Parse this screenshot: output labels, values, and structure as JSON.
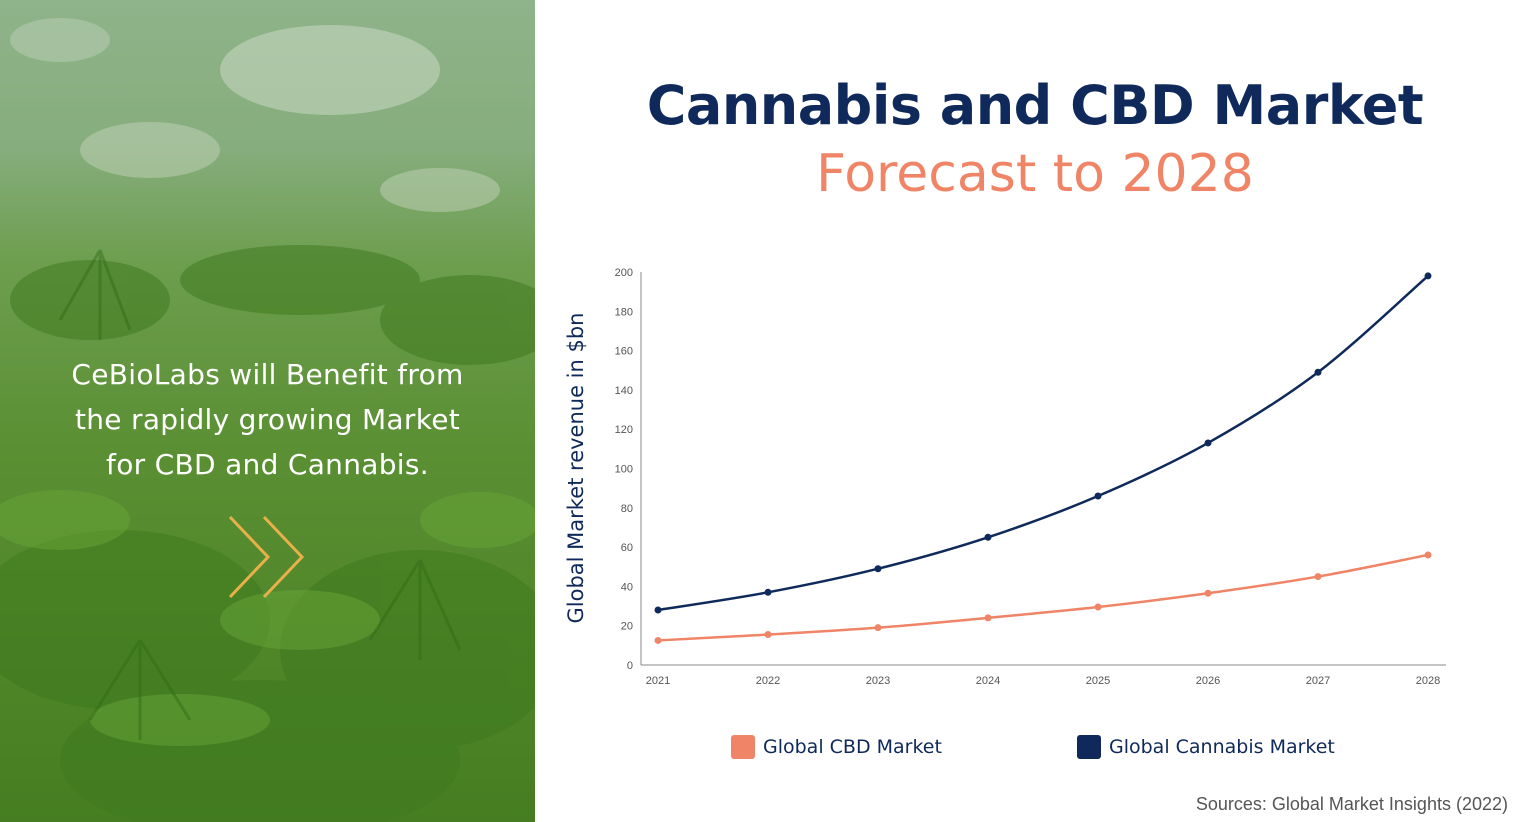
{
  "left_panel": {
    "tagline_line1": "CeBioLabs will Benefit from",
    "tagline_line2": "the rapidly growing Market",
    "tagline_line3": "for CBD and Cannabis.",
    "chevron_icon": "double-chevron-right-icon",
    "chevron_color": "#e8b04a"
  },
  "chart_data": {
    "type": "line",
    "title": "Cannabis and CBD Market",
    "subtitle": "Forecast to 2028",
    "xlabel": "",
    "ylabel": "Global Market revenue in $bn",
    "x": [
      "2021",
      "2022",
      "2023",
      "2024",
      "2025",
      "2026",
      "2027",
      "2028"
    ],
    "ylim": [
      0,
      200
    ],
    "yticks": [
      "0",
      "20",
      "40",
      "60",
      "80",
      "100",
      "120",
      "140",
      "160",
      "180",
      "200"
    ],
    "grid": false,
    "legend_position": "bottom",
    "series": [
      {
        "name": "Global CBD Market",
        "color": "#ef8466",
        "values": [
          12.5,
          15.5,
          19,
          24,
          29.5,
          36.5,
          45,
          56
        ]
      },
      {
        "name": "Global Cannabis Market",
        "color": "#0f2a5a",
        "values": [
          28,
          37,
          49,
          65,
          86,
          113,
          149,
          198
        ]
      }
    ]
  },
  "footer": {
    "source": "Sources: Global Market Insights (2022)"
  }
}
